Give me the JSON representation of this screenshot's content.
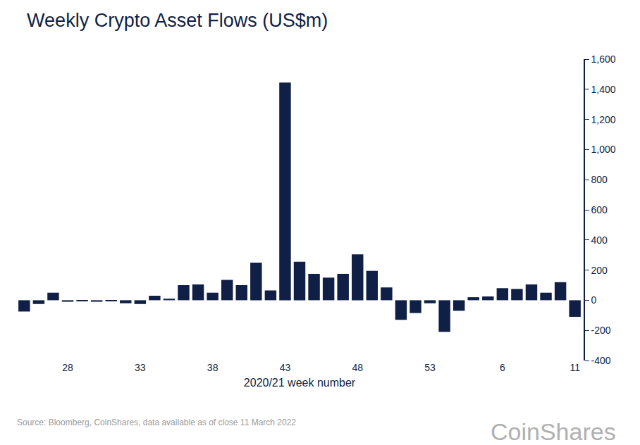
{
  "chart_data": {
    "type": "bar",
    "title": "Weekly Crypto Asset Flows (US$m)",
    "x_label": "2020/21 week number",
    "annotations": [
      "Source: Bloomberg, CoinShares, data available as of close 11 March 2022",
      "CoinShares"
    ],
    "categories": [
      null,
      null,
      null,
      "28",
      null,
      null,
      null,
      null,
      "33",
      null,
      null,
      null,
      null,
      "38",
      null,
      null,
      null,
      null,
      "43",
      null,
      null,
      null,
      null,
      "48",
      null,
      null,
      null,
      null,
      "53",
      null,
      null,
      null,
      null,
      "6",
      null,
      null,
      null,
      null,
      "11"
    ],
    "values": [
      -75,
      -25,
      50,
      -10,
      -5,
      -10,
      -5,
      -20,
      -25,
      30,
      10,
      100,
      105,
      50,
      135,
      100,
      250,
      65,
      1445,
      255,
      175,
      150,
      175,
      305,
      195,
      85,
      -130,
      -85,
      -20,
      -210,
      -70,
      20,
      25,
      80,
      75,
      105,
      50,
      120,
      -110
    ],
    "color": "#0f1f45",
    "ylim": [
      -400,
      1600
    ],
    "yticks": [
      -400,
      -200,
      0,
      200,
      400,
      600,
      800,
      {
        "value": 1000,
        "label": "1,000"
      },
      {
        "value": 1200,
        "label": "1,200"
      },
      {
        "value": 1400,
        "label": "1,400"
      },
      {
        "value": 1600,
        "label": "1,600"
      }
    ],
    "grid": false
  }
}
